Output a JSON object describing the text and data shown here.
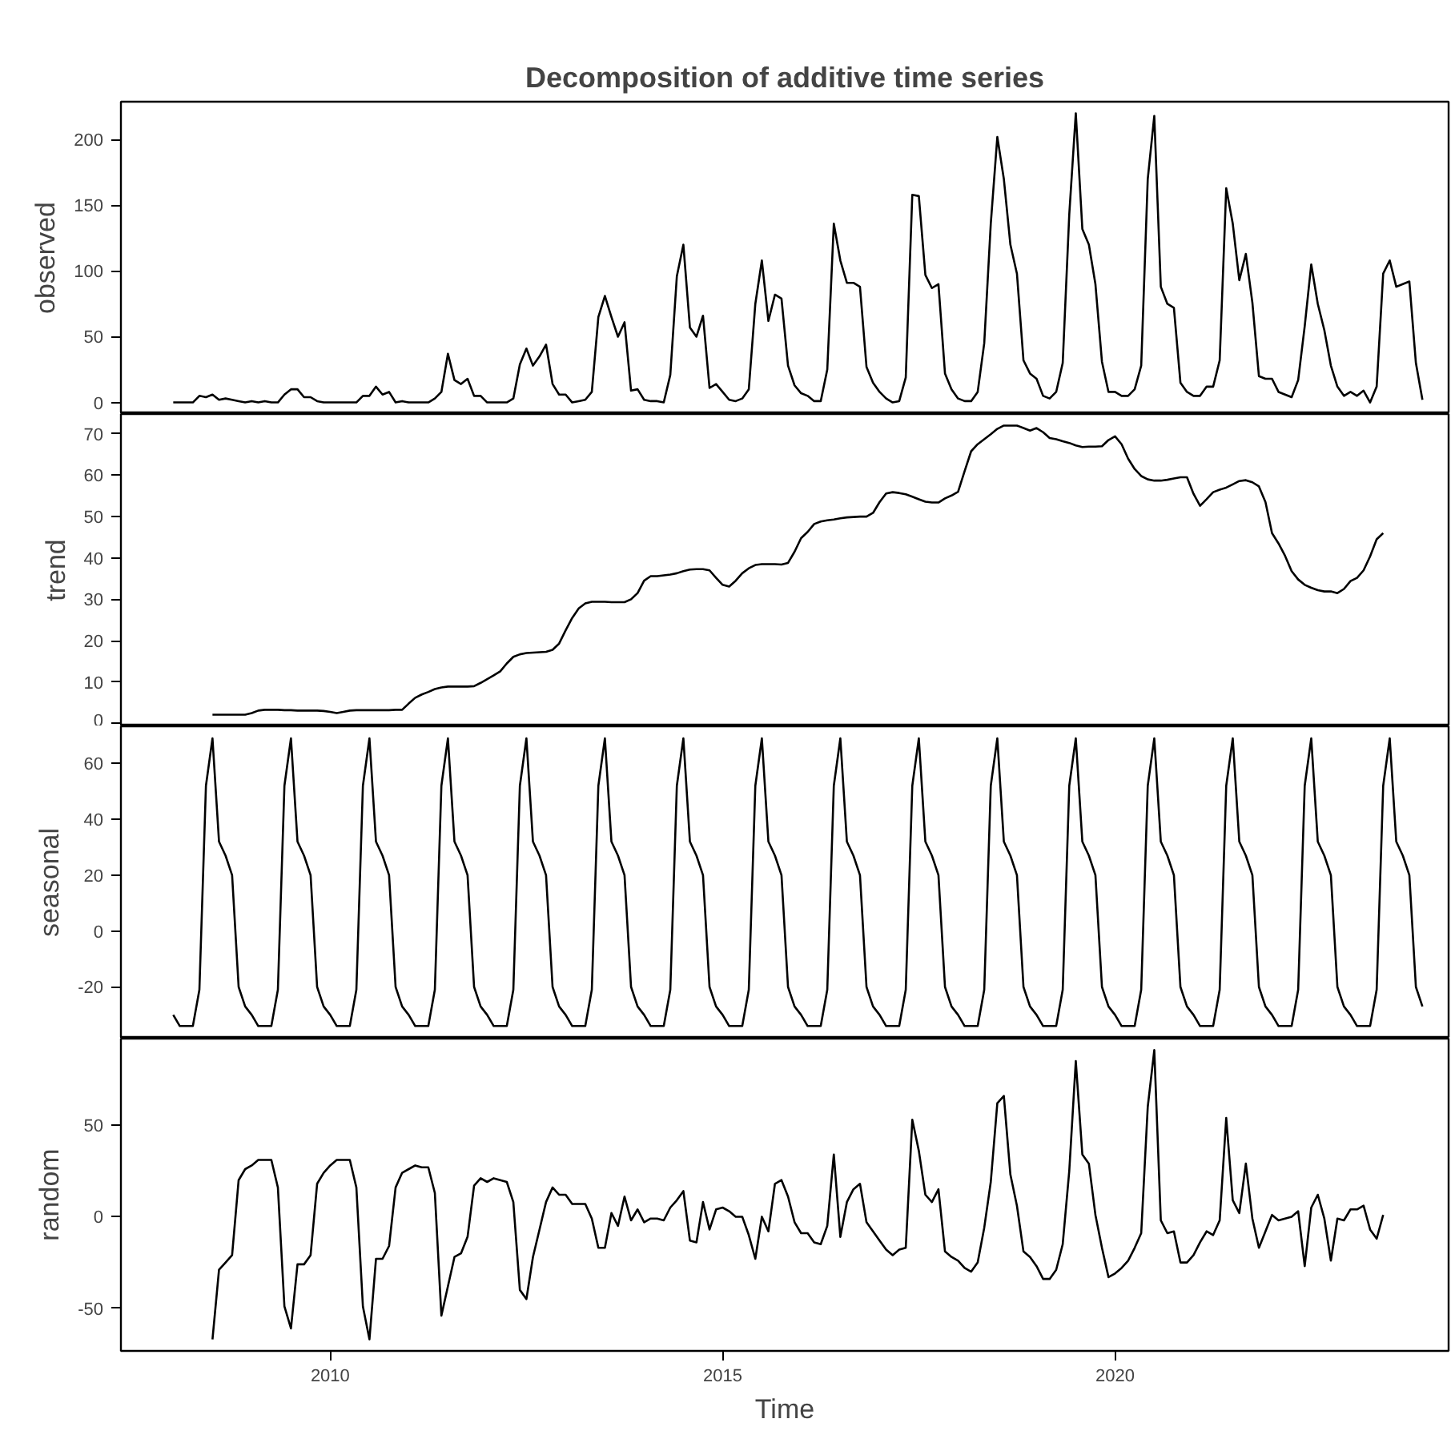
{
  "chart_data": [
    {
      "type": "line",
      "title": "Decomposition of additive time series",
      "ylabel": "observed",
      "xlim": [
        "2007-05",
        "2024-04"
      ],
      "ylim": [
        -8.8,
        228.8
      ],
      "yticks": [
        0,
        50,
        100,
        150,
        200
      ],
      "tick_labels": "y",
      "x": [
        "2008-01",
        "2008-02",
        "2008-03",
        "2008-04",
        "2008-05",
        "2008-06",
        "2008-07",
        "2008-08",
        "2008-09",
        "2008-10",
        "2008-11",
        "2008-12",
        "2009-01",
        "2009-02",
        "2009-03",
        "2009-04",
        "2009-05",
        "2009-06",
        "2009-07",
        "2009-08",
        "2009-09",
        "2009-10",
        "2009-11",
        "2009-12",
        "2010-01",
        "2010-02",
        "2010-03",
        "2010-04",
        "2010-05",
        "2010-06",
        "2010-07",
        "2010-08",
        "2010-09",
        "2010-10",
        "2010-11",
        "2010-12",
        "2011-01",
        "2011-02",
        "2011-03",
        "2011-04",
        "2011-05",
        "2011-06",
        "2011-07",
        "2011-08",
        "2011-09",
        "2011-10",
        "2011-11",
        "2011-12",
        "2012-01",
        "2012-02",
        "2012-03",
        "2012-04",
        "2012-05",
        "2012-06",
        "2012-07",
        "2012-08",
        "2012-09",
        "2012-10",
        "2012-11",
        "2012-12",
        "2013-01",
        "2013-02",
        "2013-03",
        "2013-04",
        "2013-05",
        "2013-06",
        "2013-07",
        "2013-08",
        "2013-09",
        "2013-10",
        "2013-11",
        "2013-12",
        "2014-01",
        "2014-02",
        "2014-03",
        "2014-04",
        "2014-05",
        "2014-06",
        "2014-07",
        "2014-08",
        "2014-09",
        "2014-10",
        "2014-11",
        "2014-12",
        "2015-01",
        "2015-02",
        "2015-03",
        "2015-04",
        "2015-05",
        "2015-06",
        "2015-07",
        "2015-08",
        "2015-09",
        "2015-10",
        "2015-11",
        "2015-12",
        "2016-01",
        "2016-02",
        "2016-03",
        "2016-04",
        "2016-05",
        "2016-06",
        "2016-07",
        "2016-08",
        "2016-09",
        "2016-10",
        "2016-11",
        "2016-12",
        "2017-01",
        "2017-02",
        "2017-03",
        "2017-04",
        "2017-05",
        "2017-06",
        "2017-07",
        "2017-08",
        "2017-09",
        "2017-10",
        "2017-11",
        "2017-12",
        "2018-01",
        "2018-02",
        "2018-03",
        "2018-04",
        "2018-05",
        "2018-06",
        "2018-07",
        "2018-08",
        "2018-09",
        "2018-10",
        "2018-11",
        "2018-12",
        "2019-01",
        "2019-02",
        "2019-03",
        "2019-04",
        "2019-05",
        "2019-06",
        "2019-07",
        "2019-08",
        "2019-09",
        "2019-10",
        "2019-11",
        "2019-12",
        "2020-01",
        "2020-02",
        "2020-03",
        "2020-04",
        "2020-05",
        "2020-06",
        "2020-07",
        "2020-08",
        "2020-09",
        "2020-10",
        "2020-11",
        "2020-12",
        "2021-01",
        "2021-02",
        "2021-03",
        "2021-04",
        "2021-05",
        "2021-06",
        "2021-07",
        "2021-08",
        "2021-09",
        "2021-10",
        "2021-11",
        "2021-12",
        "2022-01",
        "2022-02",
        "2022-03",
        "2022-04",
        "2022-05",
        "2022-06",
        "2022-07",
        "2022-08",
        "2022-09",
        "2022-10",
        "2022-11",
        "2022-12",
        "2023-01",
        "2023-02",
        "2023-03",
        "2023-04",
        "2023-05",
        "2023-06",
        "2023-07",
        "2023-08",
        "2023-09",
        "2023-10",
        "2023-11",
        "2023-12"
      ],
      "series": [
        {
          "color": "#000000",
          "values": [
            0,
            0,
            0,
            0,
            5,
            4,
            6,
            2,
            3,
            2,
            1,
            0,
            1,
            0,
            1,
            0,
            0,
            6,
            10,
            10,
            4,
            4,
            1,
            0,
            0,
            0,
            0,
            0,
            0,
            5,
            5,
            12,
            6,
            8,
            0,
            1,
            0,
            0,
            0,
            0,
            3,
            8,
            37,
            17,
            14,
            18,
            5,
            5,
            0,
            0,
            0,
            0,
            3,
            29,
            41,
            28,
            35,
            44,
            14,
            6,
            6,
            0,
            1,
            2,
            8,
            65,
            81,
            65,
            50,
            61,
            9,
            10,
            2,
            1,
            1,
            0,
            21,
            96,
            120,
            57,
            50,
            66,
            11,
            14,
            8,
            2,
            1,
            3,
            10,
            75,
            108,
            62,
            82,
            79,
            28,
            13,
            7,
            5,
            1,
            1,
            25,
            136,
            108,
            91,
            91,
            88,
            27,
            15,
            8,
            3,
            0,
            1,
            19,
            158,
            157,
            97,
            87,
            90,
            22,
            10,
            3,
            1,
            1,
            8,
            45,
            136,
            202,
            170,
            120,
            98,
            32,
            22,
            18,
            5,
            3,
            8,
            30,
            143,
            220,
            132,
            120,
            90,
            31,
            8,
            8,
            5,
            5,
            10,
            28,
            170,
            218,
            88,
            75,
            72,
            15,
            8,
            5,
            5,
            12,
            12,
            32,
            163,
            136,
            93,
            113,
            76,
            20,
            18,
            18,
            8,
            6,
            4,
            17,
            58,
            105,
            75,
            55,
            28,
            12,
            5,
            8,
            5,
            9,
            0,
            12,
            98,
            108,
            88,
            90,
            92,
            30,
            2
          ]
        }
      ]
    },
    {
      "type": "line",
      "ylabel": "trend",
      "xlim": [
        "2007-05",
        "2024-04"
      ],
      "ylim": [
        -0.7,
        74.8
      ],
      "yticks": [
        0,
        10,
        20,
        30,
        40,
        50,
        60,
        70
      ],
      "tick_labels": "y",
      "x": [
        "2008-07",
        "2008-08",
        "2008-09",
        "2008-10",
        "2008-11",
        "2008-12",
        "2009-01",
        "2009-02",
        "2009-03",
        "2009-04",
        "2009-05",
        "2009-06",
        "2009-07",
        "2009-08",
        "2009-09",
        "2009-10",
        "2009-11",
        "2009-12",
        "2010-01",
        "2010-02",
        "2010-03",
        "2010-04",
        "2010-05",
        "2010-06",
        "2010-07",
        "2010-08",
        "2010-09",
        "2010-10",
        "2010-11",
        "2010-12",
        "2011-01",
        "2011-02",
        "2011-03",
        "2011-04",
        "2011-05",
        "2011-06",
        "2011-07",
        "2011-08",
        "2011-09",
        "2011-10",
        "2011-11",
        "2011-12",
        "2012-01",
        "2012-02",
        "2012-03",
        "2012-04",
        "2012-05",
        "2012-06",
        "2012-07",
        "2012-08",
        "2012-09",
        "2012-10",
        "2012-11",
        "2012-12",
        "2013-01",
        "2013-02",
        "2013-03",
        "2013-04",
        "2013-05",
        "2013-06",
        "2013-07",
        "2013-08",
        "2013-09",
        "2013-10",
        "2013-11",
        "2013-12",
        "2014-01",
        "2014-02",
        "2014-03",
        "2014-04",
        "2014-05",
        "2014-06",
        "2014-07",
        "2014-08",
        "2014-09",
        "2014-10",
        "2014-11",
        "2014-12",
        "2015-01",
        "2015-02",
        "2015-03",
        "2015-04",
        "2015-05",
        "2015-06",
        "2015-07",
        "2015-08",
        "2015-09",
        "2015-10",
        "2015-11",
        "2015-12",
        "2016-01",
        "2016-02",
        "2016-03",
        "2016-04",
        "2016-05",
        "2016-06",
        "2016-07",
        "2016-08",
        "2016-09",
        "2016-10",
        "2016-11",
        "2016-12",
        "2017-01",
        "2017-02",
        "2017-03",
        "2017-04",
        "2017-05",
        "2017-06",
        "2017-07",
        "2017-08",
        "2017-09",
        "2017-10",
        "2017-11",
        "2017-12",
        "2018-01",
        "2018-02",
        "2018-03",
        "2018-04",
        "2018-05",
        "2018-06",
        "2018-07",
        "2018-08",
        "2018-09",
        "2018-10",
        "2018-11",
        "2018-12",
        "2019-01",
        "2019-02",
        "2019-03",
        "2019-04",
        "2019-05",
        "2019-06",
        "2019-07",
        "2019-08",
        "2019-09",
        "2019-10",
        "2019-11",
        "2019-12",
        "2020-01",
        "2020-02",
        "2020-03",
        "2020-04",
        "2020-05",
        "2020-06",
        "2020-07",
        "2020-08",
        "2020-09",
        "2020-10",
        "2020-11",
        "2020-12",
        "2021-01",
        "2021-02",
        "2021-03",
        "2021-04",
        "2021-05",
        "2021-06",
        "2021-07",
        "2021-08",
        "2021-09",
        "2021-10",
        "2021-11",
        "2021-12",
        "2022-01",
        "2022-02",
        "2022-03",
        "2022-04",
        "2022-05",
        "2022-06",
        "2022-07",
        "2022-08",
        "2022-09",
        "2022-10",
        "2022-11",
        "2022-12",
        "2023-01",
        "2023-02",
        "2023-03",
        "2023-04",
        "2023-05",
        "2023-06"
      ],
      "series": [
        {
          "color": "#000000",
          "values": [
            2.1,
            2.1,
            2.1,
            2.1,
            2.1,
            2.1,
            2.5,
            3.1,
            3.3,
            3.3,
            3.3,
            3.2,
            3.2,
            3.1,
            3.1,
            3.1,
            3.1,
            3.0,
            2.8,
            2.5,
            2.8,
            3.1,
            3.2,
            3.2,
            3.2,
            3.2,
            3.2,
            3.2,
            3.3,
            3.3,
            4.8,
            6.2,
            7.0,
            7.6,
            8.3,
            8.7,
            8.9,
            8.9,
            8.9,
            8.9,
            9.0,
            9.8,
            10.7,
            11.6,
            12.6,
            14.5,
            16.1,
            16.7,
            17.0,
            17.1,
            17.2,
            17.3,
            17.8,
            19.3,
            22.5,
            25.5,
            27.8,
            29.0,
            29.4,
            29.4,
            29.4,
            29.3,
            29.3,
            29.3,
            30.0,
            31.5,
            34.5,
            35.6,
            35.6,
            35.8,
            36.0,
            36.3,
            36.8,
            37.2,
            37.3,
            37.3,
            37.0,
            35.2,
            33.5,
            33.1,
            34.5,
            36.3,
            37.5,
            38.3,
            38.5,
            38.5,
            38.5,
            38.4,
            38.8,
            41.5,
            44.8,
            46.3,
            48.2,
            48.8,
            49.1,
            49.3,
            49.6,
            49.8,
            49.9,
            50.0,
            50.0,
            50.9,
            53.5,
            55.6,
            55.9,
            55.7,
            55.4,
            54.8,
            54.2,
            53.6,
            53.4,
            53.4,
            54.4,
            55.1,
            56.0,
            61.0,
            65.8,
            67.5,
            68.7,
            69.9,
            71.2,
            72.0,
            72.0,
            72.0,
            71.4,
            70.8,
            71.4,
            70.4,
            69.0,
            68.7,
            68.2,
            67.8,
            67.2,
            66.8,
            66.9,
            66.9,
            67.0,
            68.5,
            69.4,
            67.5,
            64.0,
            61.5,
            59.8,
            59.0,
            58.7,
            58.7,
            58.9,
            59.2,
            59.5,
            59.5,
            55.5,
            52.6,
            54.2,
            55.9,
            56.5,
            57.0,
            57.8,
            58.6,
            58.8,
            58.3,
            57.3,
            53.5,
            46.0,
            43.5,
            40.5,
            36.8,
            34.8,
            33.5,
            32.8,
            32.2,
            31.9,
            31.9,
            31.5,
            32.5,
            34.4,
            35.2,
            37.0,
            40.4,
            44.5,
            46.0
          ]
        }
      ]
    },
    {
      "type": "line",
      "ylabel": "seasonal",
      "xlim": [
        "2007-05",
        "2024-04"
      ],
      "ylim": [
        -38.5,
        73.3
      ],
      "yticks": [
        -20,
        0,
        20,
        40,
        60
      ],
      "tick_labels": "y",
      "x": [
        "2008-01",
        "2008-02",
        "2008-03",
        "2008-04",
        "2008-05",
        "2008-06",
        "2008-07",
        "2008-08",
        "2008-09",
        "2008-10",
        "2008-11",
        "2008-12",
        "2009-01",
        "2009-02",
        "2009-03",
        "2009-04",
        "2009-05",
        "2009-06",
        "2009-07",
        "2009-08",
        "2009-09",
        "2009-10",
        "2009-11",
        "2009-12",
        "2010-01",
        "2010-02",
        "2010-03",
        "2010-04",
        "2010-05",
        "2010-06",
        "2010-07",
        "2010-08",
        "2010-09",
        "2010-10",
        "2010-11",
        "2010-12",
        "2011-01",
        "2011-02",
        "2011-03",
        "2011-04",
        "2011-05",
        "2011-06",
        "2011-07",
        "2011-08",
        "2011-09",
        "2011-10",
        "2011-11",
        "2011-12",
        "2012-01",
        "2012-02",
        "2012-03",
        "2012-04",
        "2012-05",
        "2012-06",
        "2012-07",
        "2012-08",
        "2012-09",
        "2012-10",
        "2012-11",
        "2012-12",
        "2013-01",
        "2013-02",
        "2013-03",
        "2013-04",
        "2013-05",
        "2013-06",
        "2013-07",
        "2013-08",
        "2013-09",
        "2013-10",
        "2013-11",
        "2013-12",
        "2014-01",
        "2014-02",
        "2014-03",
        "2014-04",
        "2014-05",
        "2014-06",
        "2014-07",
        "2014-08",
        "2014-09",
        "2014-10",
        "2014-11",
        "2014-12",
        "2015-01",
        "2015-02",
        "2015-03",
        "2015-04",
        "2015-05",
        "2015-06",
        "2015-07",
        "2015-08",
        "2015-09",
        "2015-10",
        "2015-11",
        "2015-12",
        "2016-01",
        "2016-02",
        "2016-03",
        "2016-04",
        "2016-05",
        "2016-06",
        "2016-07",
        "2016-08",
        "2016-09",
        "2016-10",
        "2016-11",
        "2016-12",
        "2017-01",
        "2017-02",
        "2017-03",
        "2017-04",
        "2017-05",
        "2017-06",
        "2017-07",
        "2017-08",
        "2017-09",
        "2017-10",
        "2017-11",
        "2017-12",
        "2018-01",
        "2018-02",
        "2018-03",
        "2018-04",
        "2018-05",
        "2018-06",
        "2018-07",
        "2018-08",
        "2018-09",
        "2018-10",
        "2018-11",
        "2018-12",
        "2019-01",
        "2019-02",
        "2019-03",
        "2019-04",
        "2019-05",
        "2019-06",
        "2019-07",
        "2019-08",
        "2019-09",
        "2019-10",
        "2019-11",
        "2019-12",
        "2020-01",
        "2020-02",
        "2020-03",
        "2020-04",
        "2020-05",
        "2020-06",
        "2020-07",
        "2020-08",
        "2020-09",
        "2020-10",
        "2020-11",
        "2020-12",
        "2021-01",
        "2021-02",
        "2021-03",
        "2021-04",
        "2021-05",
        "2021-06",
        "2021-07",
        "2021-08",
        "2021-09",
        "2021-10",
        "2021-11",
        "2021-12",
        "2022-01",
        "2022-02",
        "2022-03",
        "2022-04",
        "2022-05",
        "2022-06",
        "2022-07",
        "2022-08",
        "2022-09",
        "2022-10",
        "2022-11",
        "2022-12",
        "2023-01",
        "2023-02",
        "2023-03",
        "2023-04",
        "2023-05",
        "2023-06",
        "2023-07",
        "2023-08",
        "2023-09",
        "2023-10",
        "2023-11",
        "2023-12"
      ],
      "series": [
        {
          "color": "#000000",
          "values": [
            -30,
            -34,
            -34,
            -34,
            -21,
            52,
            69,
            32,
            27,
            20,
            -20,
            -27,
            -30,
            -34,
            -34,
            -34,
            -21,
            52,
            69,
            32,
            27,
            20,
            -20,
            -27,
            -30,
            -34,
            -34,
            -34,
            -21,
            52,
            69,
            32,
            27,
            20,
            -20,
            -27,
            -30,
            -34,
            -34,
            -34,
            -21,
            52,
            69,
            32,
            27,
            20,
            -20,
            -27,
            -30,
            -34,
            -34,
            -34,
            -21,
            52,
            69,
            32,
            27,
            20,
            -20,
            -27,
            -30,
            -34,
            -34,
            -34,
            -21,
            52,
            69,
            32,
            27,
            20,
            -20,
            -27,
            -30,
            -34,
            -34,
            -34,
            -21,
            52,
            69,
            32,
            27,
            20,
            -20,
            -27,
            -30,
            -34,
            -34,
            -34,
            -21,
            52,
            69,
            32,
            27,
            20,
            -20,
            -27,
            -30,
            -34,
            -34,
            -34,
            -21,
            52,
            69,
            32,
            27,
            20,
            -20,
            -27,
            -30,
            -34,
            -34,
            -34,
            -21,
            52,
            69,
            32,
            27,
            20,
            -20,
            -27,
            -30,
            -34,
            -34,
            -34,
            -21,
            52,
            69,
            32,
            27,
            20,
            -20,
            -27,
            -30,
            -34,
            -34,
            -34,
            -21,
            52,
            69,
            32,
            27,
            20,
            -20,
            -27,
            -30,
            -34,
            -34,
            -34,
            -21,
            52,
            69,
            32,
            27,
            20,
            -20,
            -27,
            -30,
            -34,
            -34,
            -34,
            -21,
            52,
            69,
            32,
            27,
            20,
            -20,
            -27,
            -30,
            -34,
            -34,
            -34,
            -21,
            52,
            69,
            32,
            27,
            20,
            -20,
            -27,
            -30,
            -34,
            -34,
            -34,
            -21,
            52,
            69,
            32,
            27,
            20,
            -20,
            -27
          ]
        }
      ]
    },
    {
      "type": "line",
      "ylabel": "random",
      "xlabel": "Time",
      "xlim": [
        "2007-05",
        "2024-04"
      ],
      "ylim": [
        -73.3,
        97.3
      ],
      "yticks": [
        -50,
        0,
        50
      ],
      "xticks": [
        "2010",
        "2015",
        "2020"
      ],
      "x": [
        "2008-07",
        "2008-08",
        "2008-09",
        "2008-10",
        "2008-11",
        "2008-12",
        "2009-01",
        "2009-02",
        "2009-03",
        "2009-04",
        "2009-05",
        "2009-06",
        "2009-07",
        "2009-08",
        "2009-09",
        "2009-10",
        "2009-11",
        "2009-12",
        "2010-01",
        "2010-02",
        "2010-03",
        "2010-04",
        "2010-05",
        "2010-06",
        "2010-07",
        "2010-08",
        "2010-09",
        "2010-10",
        "2010-11",
        "2010-12",
        "2011-01",
        "2011-02",
        "2011-03",
        "2011-04",
        "2011-05",
        "2011-06",
        "2011-07",
        "2011-08",
        "2011-09",
        "2011-10",
        "2011-11",
        "2011-12",
        "2012-01",
        "2012-02",
        "2012-03",
        "2012-04",
        "2012-05",
        "2012-06",
        "2012-07",
        "2012-08",
        "2012-09",
        "2012-10",
        "2012-11",
        "2012-12",
        "2013-01",
        "2013-02",
        "2013-03",
        "2013-04",
        "2013-05",
        "2013-06",
        "2013-07",
        "2013-08",
        "2013-09",
        "2013-10",
        "2013-11",
        "2013-12",
        "2014-01",
        "2014-02",
        "2014-03",
        "2014-04",
        "2014-05",
        "2014-06",
        "2014-07",
        "2014-08",
        "2014-09",
        "2014-10",
        "2014-11",
        "2014-12",
        "2015-01",
        "2015-02",
        "2015-03",
        "2015-04",
        "2015-05",
        "2015-06",
        "2015-07",
        "2015-08",
        "2015-09",
        "2015-10",
        "2015-11",
        "2015-12",
        "2016-01",
        "2016-02",
        "2016-03",
        "2016-04",
        "2016-05",
        "2016-06",
        "2016-07",
        "2016-08",
        "2016-09",
        "2016-10",
        "2016-11",
        "2016-12",
        "2017-01",
        "2017-02",
        "2017-03",
        "2017-04",
        "2017-05",
        "2017-06",
        "2017-07",
        "2017-08",
        "2017-09",
        "2017-10",
        "2017-11",
        "2017-12",
        "2018-01",
        "2018-02",
        "2018-03",
        "2018-04",
        "2018-05",
        "2018-06",
        "2018-07",
        "2018-08",
        "2018-09",
        "2018-10",
        "2018-11",
        "2018-12",
        "2019-01",
        "2019-02",
        "2019-03",
        "2019-04",
        "2019-05",
        "2019-06",
        "2019-07",
        "2019-08",
        "2019-09",
        "2019-10",
        "2019-11",
        "2019-12",
        "2020-01",
        "2020-02",
        "2020-03",
        "2020-04",
        "2020-05",
        "2020-06",
        "2020-07",
        "2020-08",
        "2020-09",
        "2020-10",
        "2020-11",
        "2020-12",
        "2021-01",
        "2021-02",
        "2021-03",
        "2021-04",
        "2021-05",
        "2021-06",
        "2021-07",
        "2021-08",
        "2021-09",
        "2021-10",
        "2021-11",
        "2021-12",
        "2022-01",
        "2022-02",
        "2022-03",
        "2022-04",
        "2022-05",
        "2022-06",
        "2022-07",
        "2022-08",
        "2022-09",
        "2022-10",
        "2022-11",
        "2022-12",
        "2023-01",
        "2023-02",
        "2023-03",
        "2023-04",
        "2023-05",
        "2023-06"
      ],
      "series": [
        {
          "color": "#000000",
          "values": [
            -67,
            -29,
            -25,
            -21,
            20,
            26,
            28,
            31,
            31,
            31,
            16,
            -49,
            -61,
            -26,
            -26,
            -21,
            18,
            24,
            28,
            31,
            31,
            31,
            16,
            -49,
            -67,
            -23,
            -23,
            -16,
            16,
            24,
            26,
            28,
            27,
            27,
            13,
            -54,
            -38,
            -22,
            -20,
            -11,
            17,
            21,
            19,
            21,
            20,
            19,
            8,
            -40,
            -45,
            -22,
            -7,
            8,
            16,
            12,
            12,
            7,
            7,
            7,
            -1,
            -17,
            -17,
            2,
            -5,
            11,
            -2,
            4,
            -3,
            -1,
            -1,
            -2,
            5,
            9,
            14,
            -13,
            -14,
            8,
            -7,
            4,
            5,
            3,
            0,
            0,
            -10,
            -23,
            0,
            -8,
            18,
            20,
            11,
            -3,
            -9,
            -9,
            -14,
            -15,
            -5,
            34,
            -11,
            8,
            15,
            18,
            -3,
            -8,
            -13,
            -18,
            -21,
            -18,
            -17,
            53,
            36,
            12,
            8,
            15,
            -19,
            -22,
            -24,
            -28,
            -30,
            -25,
            -6,
            19,
            62,
            66,
            23,
            6,
            -19,
            -22,
            -27,
            -34,
            -34,
            -29,
            -15,
            25,
            85,
            34,
            29,
            1,
            -17,
            -33,
            -31,
            -28,
            -24,
            -17,
            -9,
            60,
            91,
            -2,
            -9,
            -8,
            -25,
            -25,
            -21,
            -14,
            -8,
            -10,
            -2,
            54,
            9,
            2,
            29,
            -1,
            -17,
            -8,
            1,
            -2,
            -1,
            0,
            3,
            -27,
            5,
            12,
            -1,
            -24,
            -1,
            -2,
            4,
            4,
            6,
            -7,
            -12,
            1
          ]
        }
      ]
    }
  ]
}
